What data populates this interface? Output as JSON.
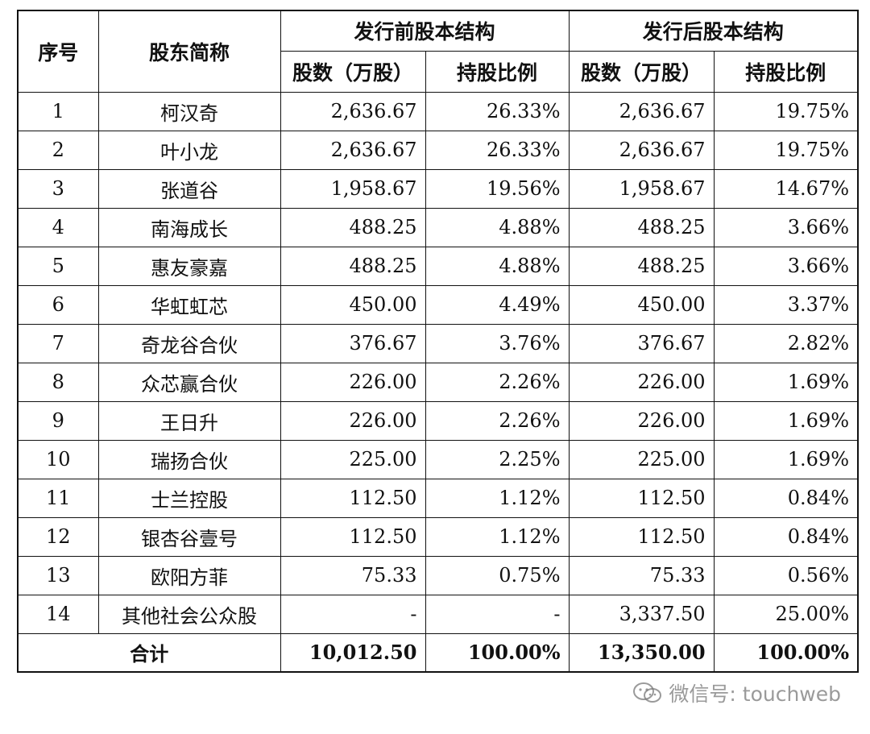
{
  "header": {
    "col_index": "序号",
    "col_name": "股东简称",
    "group_before": "发行前股本结构",
    "group_after": "发行后股本结构",
    "shares_label": "股数（万股）",
    "ratio_label": "持股比例"
  },
  "rows": [
    {
      "idx": "1",
      "name": "柯汉奇",
      "before_shares": "2,636.67",
      "before_ratio": "26.33%",
      "after_shares": "2,636.67",
      "after_ratio": "19.75%"
    },
    {
      "idx": "2",
      "name": "叶小龙",
      "before_shares": "2,636.67",
      "before_ratio": "26.33%",
      "after_shares": "2,636.67",
      "after_ratio": "19.75%"
    },
    {
      "idx": "3",
      "name": "张道谷",
      "before_shares": "1,958.67",
      "before_ratio": "19.56%",
      "after_shares": "1,958.67",
      "after_ratio": "14.67%"
    },
    {
      "idx": "4",
      "name": "南海成长",
      "before_shares": "488.25",
      "before_ratio": "4.88%",
      "after_shares": "488.25",
      "after_ratio": "3.66%"
    },
    {
      "idx": "5",
      "name": "惠友豪嘉",
      "before_shares": "488.25",
      "before_ratio": "4.88%",
      "after_shares": "488.25",
      "after_ratio": "3.66%"
    },
    {
      "idx": "6",
      "name": "华虹虹芯",
      "before_shares": "450.00",
      "before_ratio": "4.49%",
      "after_shares": "450.00",
      "after_ratio": "3.37%"
    },
    {
      "idx": "7",
      "name": "奇龙谷合伙",
      "before_shares": "376.67",
      "before_ratio": "3.76%",
      "after_shares": "376.67",
      "after_ratio": "2.82%"
    },
    {
      "idx": "8",
      "name": "众芯赢合伙",
      "before_shares": "226.00",
      "before_ratio": "2.26%",
      "after_shares": "226.00",
      "after_ratio": "1.69%"
    },
    {
      "idx": "9",
      "name": "王日升",
      "before_shares": "226.00",
      "before_ratio": "2.26%",
      "after_shares": "226.00",
      "after_ratio": "1.69%"
    },
    {
      "idx": "10",
      "name": "瑞扬合伙",
      "before_shares": "225.00",
      "before_ratio": "2.25%",
      "after_shares": "225.00",
      "after_ratio": "1.69%"
    },
    {
      "idx": "11",
      "name": "士兰控股",
      "before_shares": "112.50",
      "before_ratio": "1.12%",
      "after_shares": "112.50",
      "after_ratio": "0.84%"
    },
    {
      "idx": "12",
      "name": "银杏谷壹号",
      "before_shares": "112.50",
      "before_ratio": "1.12%",
      "after_shares": "112.50",
      "after_ratio": "0.84%"
    },
    {
      "idx": "13",
      "name": "欧阳方菲",
      "before_shares": "75.33",
      "before_ratio": "0.75%",
      "after_shares": "75.33",
      "after_ratio": "0.56%"
    },
    {
      "idx": "14",
      "name": "其他社会公众股",
      "before_shares": "-",
      "before_ratio": "-",
      "after_shares": "3,337.50",
      "after_ratio": "25.00%"
    }
  ],
  "total": {
    "label": "合计",
    "before_shares": "10,012.50",
    "before_ratio": "100.00%",
    "after_shares": "13,350.00",
    "after_ratio": "100.00%"
  },
  "watermark": {
    "text": "微信号: touchweb",
    "icon": "wechat-icon"
  }
}
